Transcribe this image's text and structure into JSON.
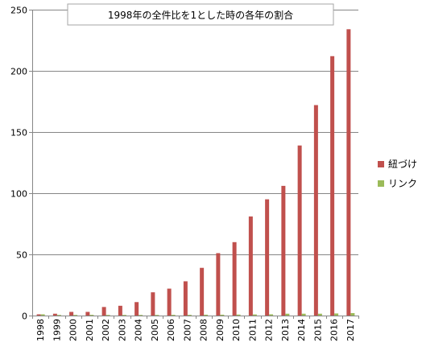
{
  "chart_data": {
    "type": "bar",
    "title": "1998年の全件比を1とした時の各年の割合",
    "xlabel": "",
    "ylabel": "",
    "categories": [
      "1998",
      "1999",
      "2000",
      "2001",
      "2002",
      "2003",
      "2004",
      "2005",
      "2006",
      "2007",
      "2008",
      "2009",
      "2010",
      "2011",
      "2012",
      "2013",
      "2014",
      "2015",
      "2016",
      "2017"
    ],
    "ylim": [
      0,
      250
    ],
    "yticks": [
      0,
      50,
      100,
      150,
      200,
      250
    ],
    "grid": true,
    "legend_position": "right",
    "series": [
      {
        "name": "紐づけ",
        "color": "#c0504d",
        "values": [
          1,
          1.5,
          3,
          3,
          7,
          8,
          11,
          19,
          22,
          28,
          39,
          51,
          60,
          81,
          95,
          106,
          139,
          172,
          212,
          234
        ]
      },
      {
        "name": "リンク",
        "color": "#9bbb59",
        "values": [
          1,
          0.3,
          0.5,
          0.6,
          0.5,
          0.5,
          0.5,
          0.5,
          0.6,
          0.6,
          0.7,
          0.7,
          0.8,
          0.9,
          1,
          1.5,
          1.5,
          1.5,
          1.7,
          2
        ]
      }
    ]
  }
}
